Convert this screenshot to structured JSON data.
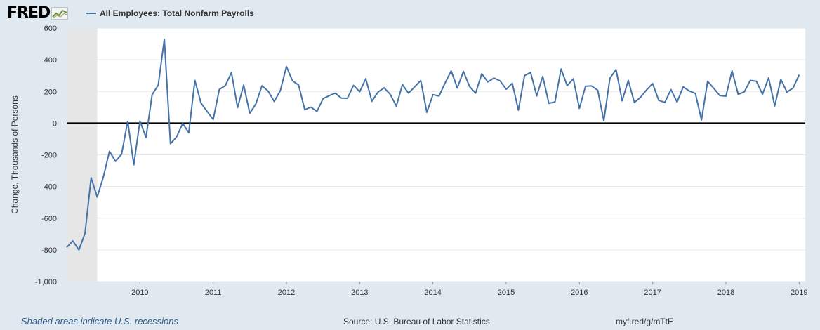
{
  "header": {
    "logo_text": "FRED",
    "logo_icon": "chart-line-icon",
    "series_title": "All Employees: Total Nonfarm Payrolls"
  },
  "colors": {
    "background": "#e1e9f0",
    "plot_background": "#ffffff",
    "series": "#4572a7",
    "recession_shade": "#e6e6e6",
    "zero_line": "#000000",
    "grid": "#e6e6e6"
  },
  "footer": {
    "recession_note": "Shaded areas indicate U.S. recessions",
    "source": "Source: U.S. Bureau of Labor Statistics",
    "shortlink": "myf.red/g/mTtE"
  },
  "chart_data": {
    "type": "line",
    "title": "All Employees: Total Nonfarm Payrolls",
    "ylabel": "Change, Thousands of Persons",
    "xlabel": "",
    "ylim": [
      -1000,
      600
    ],
    "yticks": [
      600,
      400,
      200,
      0,
      -200,
      -400,
      -600,
      -800,
      -1000
    ],
    "ytick_labels": [
      "600",
      "400",
      "200",
      "0",
      "-200",
      "-400",
      "-600",
      "-800",
      "-1,000"
    ],
    "xticks": [
      "2010",
      "2011",
      "2012",
      "2013",
      "2014",
      "2015",
      "2016",
      "2017",
      "2018",
      "2019"
    ],
    "x_start": "2009-01",
    "x_end": "2019-02",
    "grid": true,
    "zero_line": true,
    "recession": {
      "start": "2009-01",
      "end": "2009-06"
    },
    "series": [
      {
        "name": "All Employees: Total Nonfarm Payrolls",
        "values": [
          -784,
          -743,
          -800,
          -695,
          -345,
          -467,
          -340,
          -178,
          -241,
          -196,
          12,
          -263,
          13,
          -90,
          180,
          240,
          530,
          -130,
          -87,
          -2,
          -60,
          270,
          127,
          74,
          23,
          213,
          237,
          320,
          98,
          240,
          62,
          122,
          236,
          202,
          137,
          205,
          357,
          267,
          240,
          85,
          101,
          74,
          155,
          173,
          189,
          158,
          157,
          239,
          198,
          280,
          138,
          196,
          223,
          182,
          107,
          243,
          189,
          229,
          269,
          68,
          180,
          171,
          254,
          330,
          222,
          327,
          231,
          189,
          312,
          260,
          285,
          267,
          214,
          251,
          82,
          300,
          320,
          172,
          295,
          125,
          134,
          342,
          236,
          280,
          93,
          233,
          235,
          208,
          15,
          284,
          338,
          141,
          270,
          130,
          163,
          210,
          250,
          144,
          131,
          212,
          133,
          229,
          203,
          187,
          20,
          264,
          220,
          174,
          170,
          330,
          182,
          197,
          270,
          264,
          182,
          286,
          109,
          277,
          196,
          222,
          305
        ]
      }
    ]
  }
}
